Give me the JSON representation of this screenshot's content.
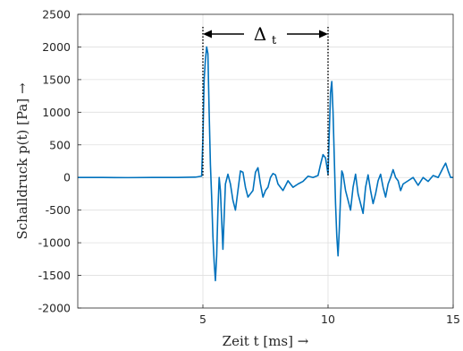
{
  "chart_data": {
    "type": "line",
    "xlabel": "Zeit t [ms] →",
    "ylabel": "Schalldruck p(t) [Pa] →",
    "xlim": [
      0,
      15
    ],
    "ylim": [
      -2000,
      2500
    ],
    "xticks": [
      5,
      10,
      15
    ],
    "yticks": [
      -2000,
      -1500,
      -1000,
      -500,
      0,
      500,
      1000,
      1500,
      2000,
      2500
    ],
    "grid": true,
    "color": "#0072BD",
    "annotation": {
      "label": "Δ",
      "subscript": "t",
      "x_start": 5,
      "x_end": 10
    },
    "series": [
      {
        "x": [
          0,
          1,
          2,
          3,
          4,
          4.7,
          4.95,
          5.0,
          5.05,
          5.1,
          5.15,
          5.2,
          5.25,
          5.3,
          5.35,
          5.4,
          5.45,
          5.5,
          5.55,
          5.6,
          5.65,
          5.7,
          5.75,
          5.8,
          5.85,
          5.9,
          6.0,
          6.1,
          6.2,
          6.3,
          6.4,
          6.5,
          6.6,
          6.7,
          6.8,
          6.9,
          7.0,
          7.1,
          7.2,
          7.3,
          7.4,
          7.5,
          7.6,
          7.7,
          7.8,
          7.9,
          8.0,
          8.2,
          8.4,
          8.6,
          8.8,
          9.0,
          9.2,
          9.4,
          9.6,
          9.7,
          9.8,
          9.9,
          10.0,
          10.05,
          10.1,
          10.15,
          10.2,
          10.25,
          10.3,
          10.35,
          10.4,
          10.45,
          10.5,
          10.55,
          10.6,
          10.7,
          10.8,
          10.9,
          11.0,
          11.1,
          11.2,
          11.3,
          11.4,
          11.5,
          11.6,
          11.7,
          11.8,
          11.9,
          12.0,
          12.1,
          12.2,
          12.3,
          12.4,
          12.5,
          12.6,
          12.7,
          12.8,
          12.9,
          13.0,
          13.2,
          13.4,
          13.6,
          13.8,
          14.0,
          14.2,
          14.4,
          14.6,
          14.7,
          14.8,
          14.9,
          15.0
        ],
        "y": [
          0,
          0,
          -2,
          0,
          0,
          5,
          20,
          600,
          1500,
          1800,
          2000,
          1900,
          1000,
          200,
          -300,
          -900,
          -1300,
          -1580,
          -1200,
          -500,
          0,
          -200,
          -650,
          -1100,
          -600,
          -100,
          50,
          -100,
          -350,
          -500,
          -200,
          100,
          80,
          -150,
          -300,
          -250,
          -200,
          80,
          150,
          -100,
          -300,
          -200,
          -150,
          0,
          60,
          40,
          -100,
          -200,
          -50,
          -150,
          -100,
          -60,
          20,
          0,
          30,
          200,
          350,
          300,
          50,
          700,
          1300,
          1470,
          1000,
          300,
          -400,
          -900,
          -1200,
          -800,
          -300,
          100,
          50,
          -200,
          -350,
          -500,
          -150,
          50,
          -250,
          -400,
          -550,
          -150,
          40,
          -200,
          -400,
          -250,
          -50,
          50,
          -150,
          -300,
          -100,
          0,
          120,
          0,
          -50,
          -200,
          -100,
          -50,
          0,
          -120,
          0,
          -60,
          30,
          0,
          150,
          220,
          100,
          0,
          0
        ]
      }
    ]
  }
}
